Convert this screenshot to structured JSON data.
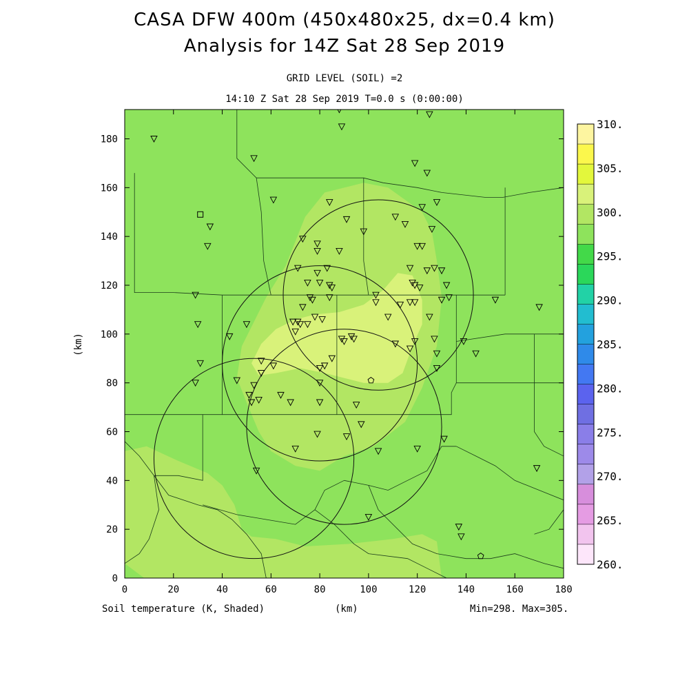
{
  "title_line1": "CASA DFW 400m (450x480x25, dx=0.4 km)",
  "title_line2": "Analysis for 14Z Sat 28 Sep 2019",
  "subtitle_line1": "GRID LEVEL (SOIL) =2",
  "subtitle_line2": "14:10 Z Sat 28 Sep 2019   T=0.0 s (0:00:00)",
  "footer_left": "Soil temperature (K, Shaded)",
  "footer_mid": "(km)",
  "footer_right": "Min=298. Max=305.",
  "colors": {
    "field_base": "#8ee35c",
    "field_mid": "#b2e663",
    "field_high": "#d9f27a"
  },
  "chart_data": {
    "type": "heatmap",
    "title": "CASA DFW 400m (450x480x25, dx=0.4 km)",
    "subtitle": "Analysis for 14Z Sat 28 Sep 2019",
    "xlabel": "(km)",
    "ylabel": "(km)",
    "xlim": [
      0,
      180
    ],
    "ylim": [
      0,
      192
    ],
    "xticks": [
      0,
      20,
      40,
      60,
      80,
      100,
      120,
      140,
      160,
      180
    ],
    "yticks": [
      0,
      20,
      40,
      60,
      80,
      100,
      120,
      140,
      160,
      180
    ],
    "field": "Soil temperature (K)",
    "min": 298,
    "max": 305,
    "colorbar": {
      "levels": [
        260,
        262.5,
        265,
        267.5,
        270,
        272.5,
        275,
        277.5,
        280,
        282.5,
        285,
        287.5,
        290,
        292.5,
        295,
        297.5,
        300,
        302.5,
        305,
        307.5,
        310
      ],
      "labels": [
        "260.",
        "265.",
        "270.",
        "275.",
        "280.",
        "285.",
        "290.",
        "295.",
        "300.",
        "305.",
        "310."
      ],
      "label_values": [
        260,
        265,
        270,
        275,
        280,
        285,
        290,
        295,
        300,
        305,
        310
      ],
      "colors": [
        "#fde6fa",
        "#f2c4ee",
        "#e59ce3",
        "#d78edc",
        "#b2a1e8",
        "#9d8ae9",
        "#8a7ee8",
        "#6f6fe2",
        "#5b63ee",
        "#4378f2",
        "#2f8ae9",
        "#23a1de",
        "#22bdd0",
        "#22d2a6",
        "#2bd75a",
        "#43d949",
        "#8ee35c",
        "#b2e663",
        "#d9f27a",
        "#e3f73c",
        "#fbf74c",
        "#fdf5a0"
      ]
    },
    "contours": [
      {
        "level": 300,
        "polygon": [
          [
            0,
            52
          ],
          [
            9,
            54
          ],
          [
            22,
            48
          ],
          [
            34,
            43
          ],
          [
            40,
            38
          ],
          [
            45,
            30
          ],
          [
            48,
            20
          ],
          [
            52,
            17
          ],
          [
            62,
            16
          ],
          [
            74,
            13
          ],
          [
            92,
            14
          ],
          [
            110,
            16
          ],
          [
            122,
            18
          ],
          [
            128,
            15
          ],
          [
            130,
            0
          ],
          [
            8,
            0
          ],
          [
            0,
            6
          ]
        ]
      },
      {
        "level": 300,
        "polygon": [
          [
            48,
            95
          ],
          [
            58,
            115
          ],
          [
            66,
            128
          ],
          [
            74,
            148
          ],
          [
            82,
            158
          ],
          [
            98,
            162
          ],
          [
            108,
            160
          ],
          [
            122,
            150
          ],
          [
            126,
            142
          ],
          [
            128,
            130
          ],
          [
            130,
            115
          ],
          [
            128,
            95
          ],
          [
            122,
            78
          ],
          [
            115,
            64
          ],
          [
            102,
            54
          ],
          [
            90,
            50
          ],
          [
            80,
            44
          ],
          [
            70,
            46
          ],
          [
            60,
            52
          ],
          [
            55,
            60
          ],
          [
            50,
            72
          ],
          [
            46,
            82
          ]
        ]
      },
      {
        "level": 302.5,
        "polygon": [
          [
            52,
            88
          ],
          [
            56,
            96
          ],
          [
            62,
            102
          ],
          [
            70,
            106
          ],
          [
            78,
            108
          ],
          [
            88,
            109
          ],
          [
            98,
            112
          ],
          [
            106,
            118
          ],
          [
            112,
            125
          ],
          [
            118,
            124
          ],
          [
            122,
            114
          ],
          [
            122,
            104
          ],
          [
            118,
            95
          ],
          [
            114,
            84
          ],
          [
            108,
            80
          ],
          [
            98,
            80
          ],
          [
            90,
            82
          ],
          [
            82,
            84
          ],
          [
            72,
            86
          ],
          [
            62,
            84
          ],
          [
            55,
            83
          ]
        ]
      }
    ],
    "circles": [
      {
        "cx": 104,
        "cy": 116,
        "r": 39
      },
      {
        "cx": 80,
        "cy": 88,
        "r": 40
      },
      {
        "cx": 90,
        "cy": 62,
        "r": 40
      },
      {
        "cx": 53,
        "cy": 49,
        "r": 41
      }
    ],
    "boundaries": [
      [
        [
          46,
          192
        ],
        [
          46,
          172
        ],
        [
          54,
          164
        ],
        [
          98,
          164
        ],
        [
          106,
          162
        ],
        [
          120,
          160
        ],
        [
          130,
          158
        ],
        [
          148,
          156
        ],
        [
          155,
          156
        ],
        [
          166,
          158
        ],
        [
          180,
          160
        ]
      ],
      [
        [
          4,
          166
        ],
        [
          4,
          117
        ],
        [
          20,
          117
        ],
        [
          40,
          116
        ]
      ],
      [
        [
          54,
          164
        ],
        [
          56,
          150
        ],
        [
          57,
          130
        ],
        [
          60,
          116
        ]
      ],
      [
        [
          98,
          164
        ],
        [
          98,
          130
        ],
        [
          100,
          116
        ]
      ],
      [
        [
          40,
          116
        ],
        [
          40,
          67
        ],
        [
          80,
          67
        ],
        [
          100,
          67
        ],
        [
          120,
          67
        ],
        [
          134,
          67
        ],
        [
          134,
          76
        ],
        [
          136,
          80
        ],
        [
          136,
          116
        ]
      ],
      [
        [
          40,
          116
        ],
        [
          60,
          116
        ],
        [
          78,
          116
        ],
        [
          100,
          116
        ],
        [
          120,
          116
        ],
        [
          136,
          116
        ],
        [
          156,
          116
        ]
      ],
      [
        [
          87,
          116
        ],
        [
          87,
          67
        ]
      ],
      [
        [
          136,
          97
        ],
        [
          156,
          100
        ],
        [
          172,
          100
        ],
        [
          180,
          100
        ]
      ],
      [
        [
          136,
          80
        ],
        [
          180,
          80
        ]
      ],
      [
        [
          156,
          116
        ],
        [
          156,
          160
        ]
      ],
      [
        [
          136,
          54
        ],
        [
          144,
          50
        ],
        [
          152,
          46
        ],
        [
          160,
          40
        ],
        [
          170,
          36
        ],
        [
          180,
          32
        ]
      ],
      [
        [
          0,
          67
        ],
        [
          32,
          67
        ],
        [
          32,
          40
        ],
        [
          22,
          42
        ],
        [
          12,
          42
        ]
      ],
      [
        [
          32,
          67
        ],
        [
          40,
          67
        ]
      ],
      [
        [
          0,
          56
        ],
        [
          6,
          50
        ],
        [
          12,
          42
        ],
        [
          18,
          34
        ],
        [
          30,
          30
        ],
        [
          38,
          28
        ],
        [
          44,
          24
        ],
        [
          50,
          18
        ],
        [
          56,
          10
        ],
        [
          58,
          0
        ]
      ],
      [
        [
          12,
          42
        ],
        [
          14,
          28
        ],
        [
          10,
          16
        ],
        [
          6,
          10
        ],
        [
          0,
          6
        ]
      ],
      [
        [
          32,
          30
        ],
        [
          46,
          26
        ],
        [
          58,
          24
        ],
        [
          70,
          22
        ],
        [
          78,
          28
        ],
        [
          82,
          36
        ],
        [
          90,
          40
        ]
      ],
      [
        [
          78,
          28
        ],
        [
          86,
          22
        ],
        [
          94,
          14
        ],
        [
          100,
          10
        ],
        [
          116,
          8
        ],
        [
          124,
          4
        ],
        [
          132,
          0
        ]
      ],
      [
        [
          90,
          40
        ],
        [
          100,
          38
        ],
        [
          108,
          36
        ],
        [
          116,
          40
        ],
        [
          124,
          44
        ],
        [
          130,
          54
        ],
        [
          136,
          54
        ]
      ],
      [
        [
          100,
          38
        ],
        [
          104,
          28
        ],
        [
          112,
          20
        ],
        [
          118,
          14
        ],
        [
          128,
          10
        ],
        [
          140,
          8
        ],
        [
          150,
          8
        ],
        [
          160,
          10
        ],
        [
          172,
          6
        ],
        [
          180,
          4
        ]
      ],
      [
        [
          168,
          100
        ],
        [
          168,
          60
        ],
        [
          172,
          54
        ],
        [
          180,
          50
        ]
      ],
      [
        [
          180,
          28
        ],
        [
          174,
          20
        ],
        [
          168,
          18
        ]
      ]
    ],
    "stations_triangle": [
      [
        12,
        180
      ],
      [
        53,
        172
      ],
      [
        88,
        192
      ],
      [
        89,
        185
      ],
      [
        125,
        190
      ],
      [
        119,
        170
      ],
      [
        124,
        166
      ],
      [
        61,
        155
      ],
      [
        84,
        154
      ],
      [
        122,
        152
      ],
      [
        128,
        154
      ],
      [
        91,
        147
      ],
      [
        111,
        148
      ],
      [
        115,
        145
      ],
      [
        126,
        143
      ],
      [
        98,
        142
      ],
      [
        35,
        144
      ],
      [
        73,
        139
      ],
      [
        79,
        137
      ],
      [
        79,
        134
      ],
      [
        88,
        134
      ],
      [
        34,
        136
      ],
      [
        120,
        136
      ],
      [
        122,
        136
      ],
      [
        71,
        127
      ],
      [
        83,
        127
      ],
      [
        117,
        127
      ],
      [
        124,
        126
      ],
      [
        127,
        127
      ],
      [
        130,
        126
      ],
      [
        79,
        125
      ],
      [
        84,
        120
      ],
      [
        85,
        119
      ],
      [
        118,
        121
      ],
      [
        119,
        120
      ],
      [
        121,
        119
      ],
      [
        132,
        120
      ],
      [
        75,
        121
      ],
      [
        80,
        121
      ],
      [
        29,
        116
      ],
      [
        76,
        115
      ],
      [
        77,
        114
      ],
      [
        84,
        115
      ],
      [
        103,
        116
      ],
      [
        103,
        113
      ],
      [
        113,
        112
      ],
      [
        117,
        113
      ],
      [
        119,
        113
      ],
      [
        130,
        114
      ],
      [
        133,
        115
      ],
      [
        152,
        114
      ],
      [
        170,
        111
      ],
      [
        73,
        111
      ],
      [
        108,
        107
      ],
      [
        125,
        107
      ],
      [
        78,
        107
      ],
      [
        81,
        106
      ],
      [
        71,
        105
      ],
      [
        72,
        104
      ],
      [
        75,
        104
      ],
      [
        69,
        105
      ],
      [
        30,
        104
      ],
      [
        50,
        104
      ],
      [
        70,
        101
      ],
      [
        43,
        99
      ],
      [
        89,
        98
      ],
      [
        94,
        98
      ],
      [
        90,
        97
      ],
      [
        93,
        99
      ],
      [
        111,
        96
      ],
      [
        119,
        97
      ],
      [
        127,
        98
      ],
      [
        139,
        97
      ],
      [
        144,
        92
      ],
      [
        128,
        92
      ],
      [
        117,
        94
      ],
      [
        31,
        88
      ],
      [
        61,
        87
      ],
      [
        56,
        89
      ],
      [
        56,
        84
      ],
      [
        80,
        86
      ],
      [
        82,
        87
      ],
      [
        85,
        90
      ],
      [
        46,
        81
      ],
      [
        53,
        79
      ],
      [
        29,
        80
      ],
      [
        80,
        80
      ],
      [
        128,
        86
      ],
      [
        51,
        75
      ],
      [
        64,
        75
      ],
      [
        55,
        73
      ],
      [
        68,
        72
      ],
      [
        80,
        72
      ],
      [
        95,
        71
      ],
      [
        52,
        72
      ],
      [
        97,
        63
      ],
      [
        91,
        58
      ],
      [
        79,
        59
      ],
      [
        70,
        53
      ],
      [
        131,
        57
      ],
      [
        120,
        53
      ],
      [
        104,
        52
      ],
      [
        54,
        44
      ],
      [
        169,
        45
      ],
      [
        100,
        25
      ],
      [
        137,
        21
      ],
      [
        138,
        17
      ]
    ],
    "station_square": [
      31,
      149
    ],
    "station_pentagon_1": [
      101,
      81
    ],
    "station_pentagon_2": [
      146,
      9
    ]
  }
}
